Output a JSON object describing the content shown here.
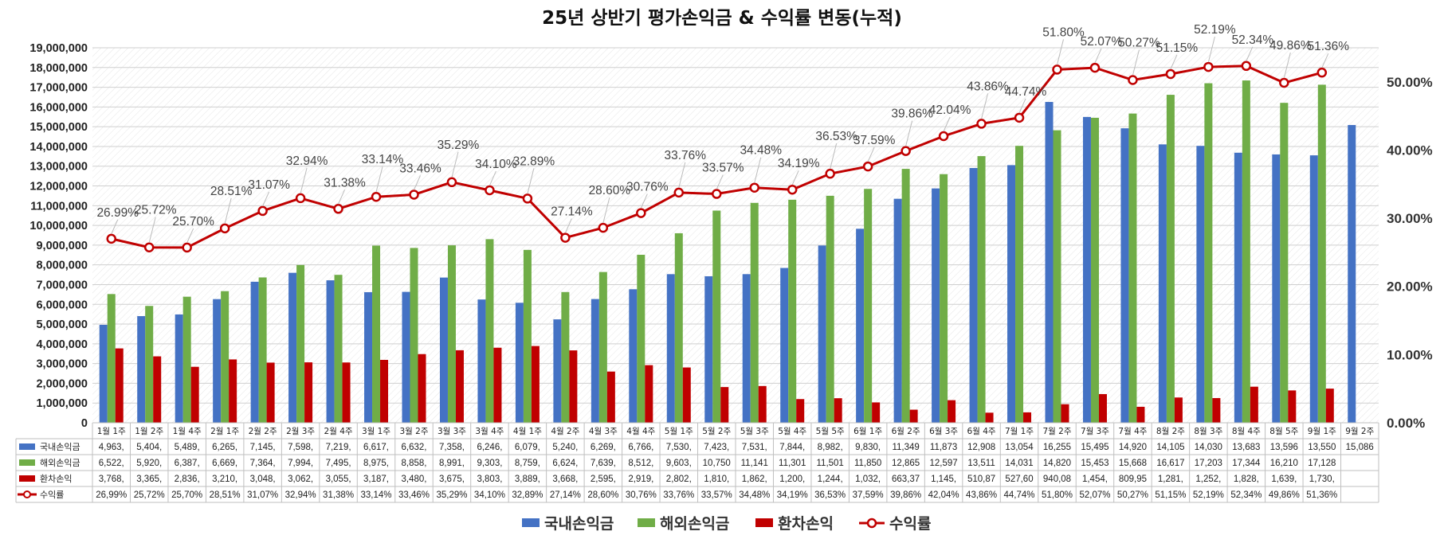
{
  "chart_data": {
    "type": "bar",
    "title": "25년 상반기 평가손익금 & 수익률 변동(누적)",
    "categories": [
      "1월 1주",
      "1월 2주",
      "1월 4주",
      "2월 1주",
      "2월 2주",
      "2월 3주",
      "2월 4주",
      "3월 1주",
      "3월 2주",
      "3월 3주",
      "3월 4주",
      "4월 1주",
      "4월 2주",
      "4월 3주",
      "4월 4주",
      "5월 1주",
      "5월 2주",
      "5월 3주",
      "5월 4주",
      "5월 5주",
      "6월 1주",
      "6월 2주",
      "6월 3주",
      "6월 4주",
      "7월 1주",
      "7월 2주",
      "7월 3주",
      "7월 4주",
      "8월 2주",
      "8월 3주",
      "8월 4주",
      "8월 5주",
      "9월 1주",
      "9월 2주"
    ],
    "y_left": {
      "min": 0,
      "max": 19000000,
      "step": 1000000,
      "ticks": [
        "0",
        "1,000,000",
        "2,000,000",
        "3,000,000",
        "4,000,000",
        "5,000,000",
        "6,000,000",
        "7,000,000",
        "8,000,000",
        "9,000,000",
        "10,000,000",
        "11,000,000",
        "12,000,000",
        "13,000,000",
        "14,000,000",
        "15,000,000",
        "16,000,000",
        "17,000,000",
        "18,000,000",
        "19,000,000"
      ]
    },
    "y_right": {
      "min": 0,
      "max": 55,
      "ticks": [
        "0.00%",
        "10.00%",
        "20.00%",
        "30.00%",
        "40.00%",
        "50.00%"
      ]
    },
    "series": [
      {
        "name": "국내손익금",
        "kind": "bar",
        "color": "#4472C4",
        "values": [
          4963000,
          5404000,
          5489000,
          6265000,
          7145000,
          7598000,
          7219000,
          6617000,
          6632000,
          7358000,
          6246000,
          6079000,
          5240000,
          6269000,
          6766000,
          7530000,
          7423000,
          7531000,
          7844000,
          8982000,
          9830000,
          11349000,
          11873000,
          12908000,
          13054000,
          16255000,
          15495000,
          14920000,
          14105000,
          14030000,
          13683000,
          13596000,
          13550000,
          15086000
        ],
        "table": [
          "4,963,",
          "5,404,",
          "5,489,",
          "6,265,",
          "7,145,",
          "7,598,",
          "7,219,",
          "6,617,",
          "6,632,",
          "7,358,",
          "6,246,",
          "6,079,",
          "5,240,",
          "6,269,",
          "6,766,",
          "7,530,",
          "7,423,",
          "7,531,",
          "7,844,",
          "8,982,",
          "9,830,",
          "11,349",
          "11,873",
          "12,908",
          "13,054",
          "16,255",
          "15,495",
          "14,920",
          "14,105",
          "14,030",
          "13,683",
          "13,596",
          "13,550",
          "15,086"
        ]
      },
      {
        "name": "해외손익금",
        "kind": "bar",
        "color": "#70AD47",
        "values": [
          6522000,
          5920000,
          6387000,
          6669000,
          7364000,
          7994000,
          7495000,
          8975000,
          8858000,
          8991000,
          9303000,
          8759000,
          6624000,
          7639000,
          8512000,
          9603000,
          10750000,
          11141000,
          11301000,
          11501000,
          11850000,
          12865000,
          12597000,
          13511000,
          14031000,
          14820000,
          15453000,
          15668000,
          16617000,
          17203000,
          17344000,
          16210000,
          17128000,
          null
        ],
        "table": [
          "6,522,",
          "5,920,",
          "6,387,",
          "6,669,",
          "7,364,",
          "7,994,",
          "7,495,",
          "8,975,",
          "8,858,",
          "8,991,",
          "9,303,",
          "8,759,",
          "6,624,",
          "7,639,",
          "8,512,",
          "9,603,",
          "10,750",
          "11,141",
          "11,301",
          "11,501",
          "11,850",
          "12,865",
          "12,597",
          "13,511",
          "14,031",
          "14,820",
          "15,453",
          "15,668",
          "16,617",
          "17,203",
          "17,344",
          "16,210",
          "17,128",
          ""
        ]
      },
      {
        "name": "환차손익",
        "kind": "bar",
        "color": "#C00000",
        "values": [
          3768000,
          3365000,
          2836000,
          3210000,
          3048000,
          3062000,
          3055000,
          3187000,
          3480000,
          3675000,
          3803000,
          3889000,
          3668000,
          2595000,
          2919000,
          2802000,
          1810000,
          1862000,
          1200000,
          1244000,
          1032000,
          663370,
          1145000,
          510870,
          527600,
          940080,
          1454000,
          809950,
          1281000,
          1252000,
          1828000,
          1639000,
          1730000,
          null
        ],
        "table": [
          "3,768,",
          "3,365,",
          "2,836,",
          "3,210,",
          "3,048,",
          "3,062,",
          "3,055,",
          "3,187,",
          "3,480,",
          "3,675,",
          "3,803,",
          "3,889,",
          "3,668,",
          "2,595,",
          "2,919,",
          "2,802,",
          "1,810,",
          "1,862,",
          "1,200,",
          "1,244,",
          "1,032,",
          "663,37",
          "1,145,",
          "510,87",
          "527,60",
          "940,08",
          "1,454,",
          "809,95",
          "1,281,",
          "1,252,",
          "1,828,",
          "1,639,",
          "1,730,",
          ""
        ]
      },
      {
        "name": "수익률",
        "kind": "line",
        "axis": "right",
        "color": "#C00000",
        "values": [
          26.99,
          25.72,
          25.7,
          28.51,
          31.07,
          32.94,
          31.38,
          33.14,
          33.46,
          35.29,
          34.1,
          32.89,
          27.14,
          28.6,
          30.76,
          33.76,
          33.57,
          34.48,
          34.19,
          36.53,
          37.59,
          39.86,
          42.04,
          43.86,
          44.74,
          51.8,
          52.07,
          50.27,
          51.15,
          52.19,
          52.34,
          49.86,
          51.36,
          null
        ],
        "labels": [
          "26.99%",
          "25.72%",
          "25.70%",
          "28.51%",
          "31.07%",
          "32.94%",
          "31.38%",
          "33.14%",
          "33.46%",
          "35.29%",
          "34.10%",
          "32.89%",
          "27.14%",
          "28.60%",
          "30.76%",
          "33.76%",
          "33.57%",
          "34.48%",
          "34.19%",
          "36.53%",
          "37.59%",
          "39.86%",
          "42.04%",
          "43.86%",
          "44.74%",
          "51.80%",
          "52.07%",
          "50.27%",
          "51.15%",
          "52.19%",
          "52.34%",
          "49.86%",
          "51.36%",
          ""
        ],
        "table": [
          "26,99%",
          "25,72%",
          "25,70%",
          "28,51%",
          "31,07%",
          "32,94%",
          "31,38%",
          "33,14%",
          "33,46%",
          "35,29%",
          "34,10%",
          "32,89%",
          "27,14%",
          "28,60%",
          "30,76%",
          "33,76%",
          "33,57%",
          "34,48%",
          "34,19%",
          "36,53%",
          "37,59%",
          "39,86%",
          "42,04%",
          "43,86%",
          "44,74%",
          "51,80%",
          "52,07%",
          "50,27%",
          "51,15%",
          "52,19%",
          "52,34%",
          "49,86%",
          "51,36%",
          ""
        ]
      }
    ],
    "legend_position": "bottom",
    "grid": true,
    "data_table": true
  }
}
